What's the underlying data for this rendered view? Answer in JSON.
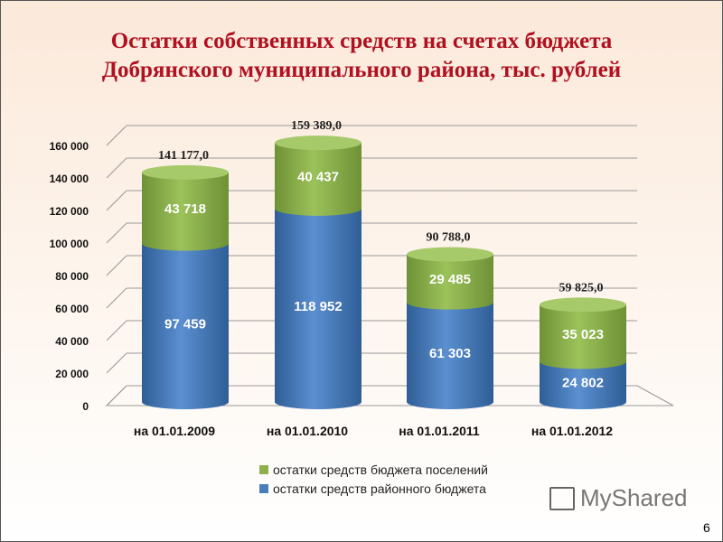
{
  "title": [
    "Остатки собственных средств на счетах бюджета",
    "Добрянского муниципального района, тыс. рублей"
  ],
  "chart_data": {
    "type": "bar",
    "stacked": true,
    "title": "Остатки собственных средств на счетах бюджета Добрянского муниципального района, тыс. рублей",
    "categories": [
      "на 01.01.2009",
      "на 01.01.2010",
      "на 01.01.2011",
      "на 01.01.2012"
    ],
    "series": [
      {
        "name": "остатки средств районного бюджета",
        "values": [
          97459,
          118952,
          61303,
          24802
        ],
        "labels": [
          "97 459",
          "118 952",
          "61 303",
          "24 802"
        ],
        "color": "#4a7ebb"
      },
      {
        "name": "остатки средств бюджета поселений",
        "values": [
          43718,
          40437,
          29485,
          35023
        ],
        "labels": [
          "43 718",
          "40 437",
          "29 485",
          "35 023"
        ],
        "color": "#8db04a"
      }
    ],
    "totals": [
      "141 177,0",
      "159 389,0",
      "90 788,0",
      "59 825,0"
    ],
    "ylim": [
      0,
      160000
    ],
    "yticks": [
      0,
      20000,
      40000,
      60000,
      80000,
      100000,
      120000,
      140000,
      160000
    ],
    "ytick_labels": [
      "0",
      "20 000",
      "40 000",
      "60 000",
      "80 000",
      "100 000",
      "120 000",
      "140 000",
      "160 000"
    ],
    "grid": true,
    "legend": "bottom"
  },
  "legend": [
    "остатки средств бюджета поселений",
    "остатки средств районного бюджета"
  ],
  "logo": "MyShared",
  "page_number": "6"
}
